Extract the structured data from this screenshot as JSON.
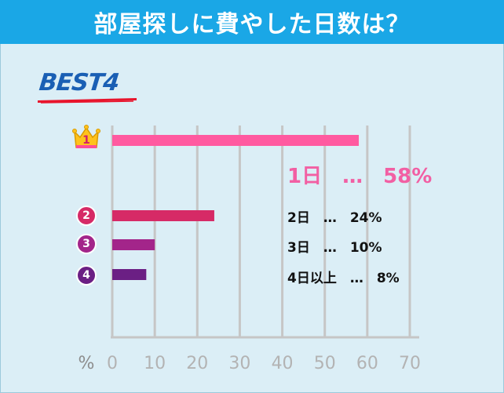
{
  "header": {
    "title": "部屋探しに費やした日数は？"
  },
  "best_label": "BEST4",
  "colors": {
    "header_bg": "#1aa7e6",
    "background": "#dbeef6",
    "grid": "#c6c6c6",
    "rank1": "#ff5aa0",
    "rank2": "#d62a66",
    "rank3": "#a3258a",
    "rank4": "#6b1f84",
    "crown": "#ffc21c"
  },
  "ranks": [
    {
      "badge": "1",
      "icon": "crown-icon",
      "result": "1日　…　58%"
    },
    {
      "badge": "2",
      "icon": "rank-circle-icon",
      "result": "2日　…　24%"
    },
    {
      "badge": "3",
      "icon": "rank-circle-icon",
      "result": "3日　…　10%"
    },
    {
      "badge": "4",
      "icon": "rank-circle-icon",
      "result": "4日以上　…　8%"
    }
  ],
  "chart_data": {
    "type": "bar",
    "orientation": "horizontal",
    "title": "部屋探しに費やした日数は？",
    "categories": [
      "1日",
      "2日",
      "3日",
      "4日以上"
    ],
    "values": [
      58,
      24,
      10,
      8
    ],
    "xlabel": "%",
    "xlim": [
      0,
      70
    ],
    "xticks": [
      0,
      10,
      20,
      30,
      40,
      50,
      60,
      70
    ],
    "tick_labels": [
      "0",
      "10",
      "20",
      "30",
      "40",
      "50",
      "60",
      "70"
    ],
    "unit_label": "%",
    "grid": true
  }
}
